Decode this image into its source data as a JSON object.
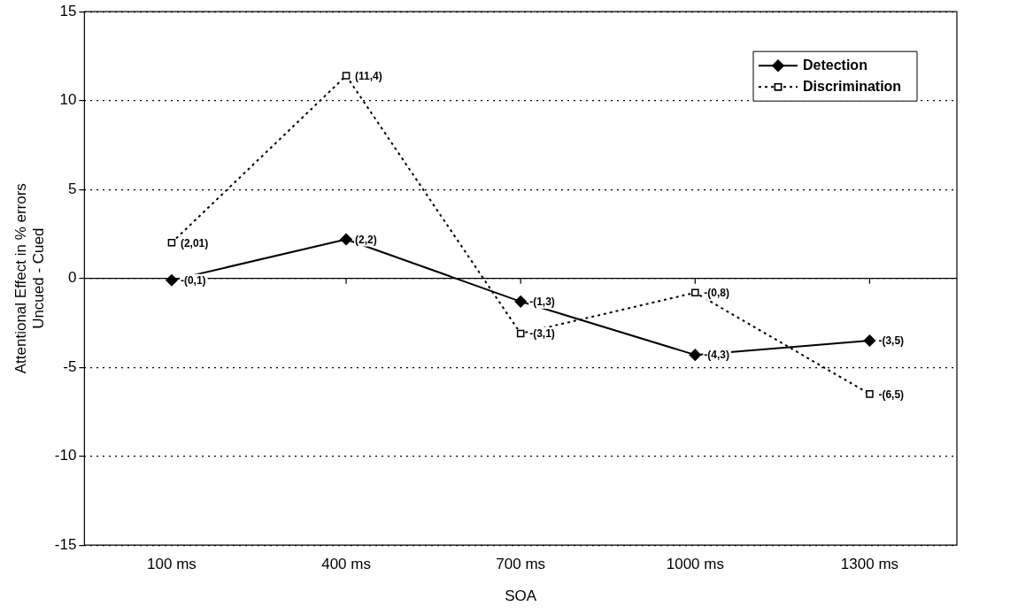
{
  "chart_data": {
    "type": "line",
    "xlabel": "SOA",
    "ylabel": "Attentional Effect in % errors\nUncued - Cued",
    "categories": [
      "100 ms",
      "400 ms",
      "700 ms",
      "1000 ms",
      "1300 ms"
    ],
    "series": [
      {
        "name": "Detection",
        "color": "#000000",
        "marker": "diamond",
        "line_style": "solid",
        "values": [
          -0.1,
          2.2,
          -1.3,
          -4.3,
          -3.5
        ],
        "value_labels": [
          "-(0,1)",
          "(2,2)",
          "-(1,3)",
          "-(4,3)",
          "-(3,5)"
        ]
      },
      {
        "name": "Discrimination",
        "color": "#000000",
        "marker": "square",
        "line_style": "dotted",
        "values": [
          2.01,
          11.4,
          -3.1,
          -0.8,
          -6.5
        ],
        "value_labels": [
          "(2,01)",
          "(11,4)",
          "-(3,1)",
          "-(0,8)",
          "-(6,5)"
        ]
      }
    ],
    "ylim": [
      -15,
      15
    ],
    "yticks": [
      -15,
      -10,
      -5,
      0,
      5,
      10,
      15
    ],
    "grid": "y",
    "legend": "top right"
  }
}
